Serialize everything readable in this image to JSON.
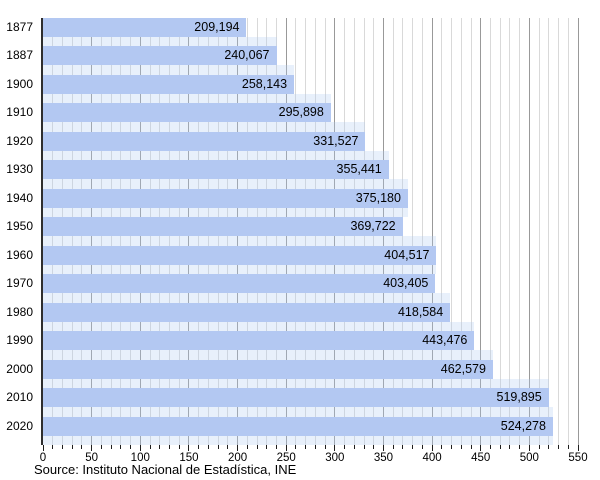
{
  "colors": {
    "bar": "#b3c8f2",
    "gap_tint": "rgba(179,204,242,0.30)",
    "grid_minor": "#d9d9d9",
    "grid_major": "#999999",
    "axis_line": "#2e2e2e",
    "text": "#000000"
  },
  "chart_data": {
    "type": "bar",
    "orientation": "horizontal",
    "title": "",
    "categories": [
      "1877",
      "1887",
      "1900",
      "1910",
      "1920",
      "1930",
      "1940",
      "1950",
      "1960",
      "1970",
      "1980",
      "1990",
      "2000",
      "2010",
      "2020"
    ],
    "values": [
      209194,
      240067,
      258143,
      295898,
      331527,
      355441,
      375180,
      369722,
      404517,
      403405,
      418584,
      443476,
      462579,
      519895,
      524278
    ],
    "values_formatted": [
      "209,194",
      "240,067",
      "258,143",
      "295,898",
      "331,527",
      "355,441",
      "375,180",
      "369,722",
      "404,517",
      "403,405",
      "418,584",
      "443,476",
      "462,579",
      "519,895",
      "524,278"
    ],
    "xlabel": "",
    "ylabel": "",
    "xlim": [
      0,
      550
    ],
    "x_major_ticks": [
      0,
      50,
      100,
      150,
      200,
      250,
      300,
      350,
      400,
      450,
      500,
      550
    ],
    "x_minor_step": 10,
    "x_value_divisor": 1000,
    "grid": true,
    "legend_position": "none",
    "source": "Source: Instituto Nacional de Estadística, INE"
  }
}
